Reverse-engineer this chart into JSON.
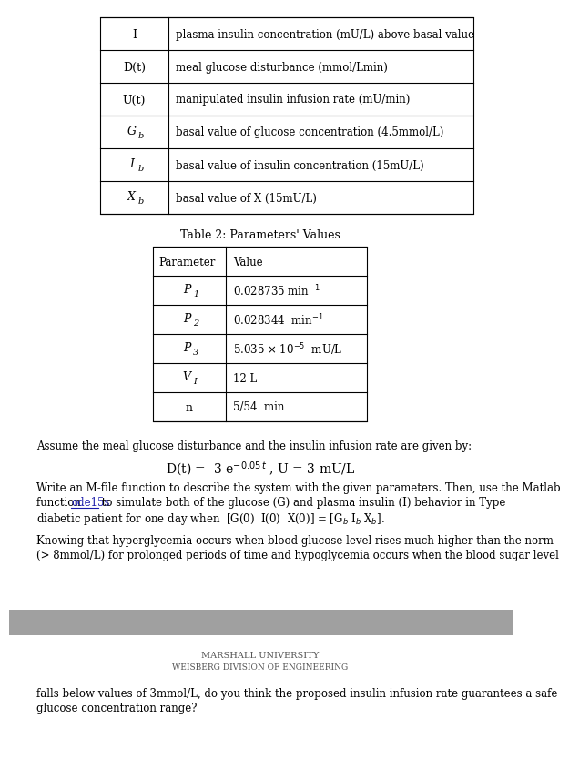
{
  "bg_color": "#ffffff",
  "table1_rows": [
    [
      "I",
      "plasma insulin concentration (mU/L) above basal value"
    ],
    [
      "D(t)",
      "meal glucose disturbance (mmol/Lmin)"
    ],
    [
      "U(t)",
      "manipulated insulin infusion rate (mU/min)"
    ],
    [
      "Gb",
      "basal value of glucose concentration (4.5mmol/L)"
    ],
    [
      "Ib",
      "basal value of insulin concentration (15mU/L)"
    ],
    [
      "Xb",
      "basal value of X (15mU/L)"
    ]
  ],
  "table2_title": "Table 2: Parameters' Values",
  "table2_headers": [
    "Parameter",
    "Value"
  ],
  "table2_rows": [
    [
      "P1",
      "0.028735 min$^{-1}$"
    ],
    [
      "P2",
      "0.028344  min$^{-1}$"
    ],
    [
      "P3",
      "5.035 $\\times$ 10$^{-5}$  mU/L"
    ],
    [
      "VI",
      "12 L"
    ],
    [
      "n",
      "5/54  min"
    ]
  ],
  "para1": "Assume the meal glucose disturbance and the insulin infusion rate are given by:",
  "equation": "D(t) =  3 e$^{-0.05\\,t}$ , U = 3 mU/L",
  "para2_line1": "Write an M-file function to describe the system with the given parameters. Then, use the Matlab",
  "para2_line2a": "function ",
  "para2_line2b": "ode15s",
  "para2_line2c": " to simulate both of the glucose (G) and plasma insulin (I) behavior in Type",
  "para2_line3": "diabetic patient for one day when  [G(0)  I(0)  X(0)] = [G$_b$ I$_b$ X$_b$].",
  "para3_line1": "Knowing that hyperglycemia occurs when blood glucose level rises much higher than the norm",
  "para3_line2": "(> 8mmol/L) for prolonged periods of time and hypoglycemia occurs when the blood sugar level",
  "footer_bar_color": "#a0a0a0",
  "footer1": "Marshall University",
  "footer2": "Weisberg Division of Engineering",
  "last_line1": "falls below values of 3mmol/L, do you think the proposed insulin infusion rate guarantees a safe",
  "last_line2": "glucose concentration range?",
  "text_color": "#000000",
  "link_color": "#1a1aaa"
}
